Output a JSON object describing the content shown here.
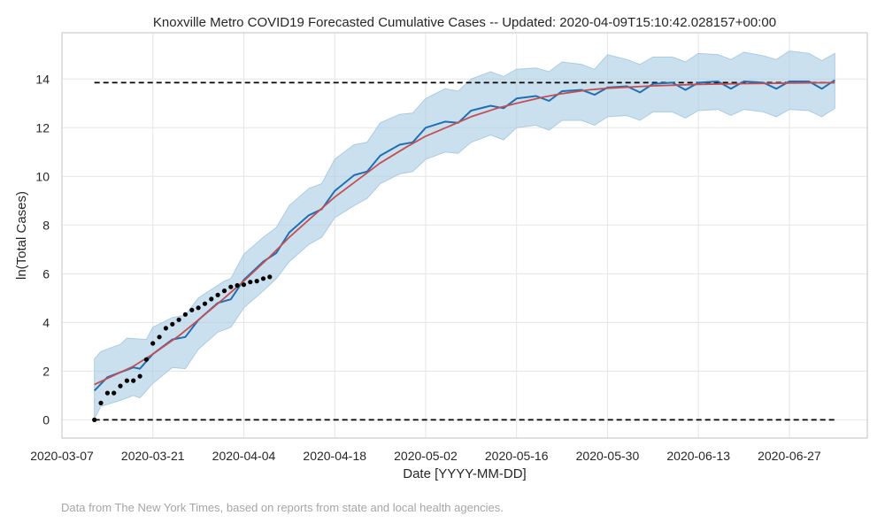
{
  "chart_data": {
    "type": "line",
    "title": "Knoxville Metro COVID19 Forecasted Cumulative Cases -- Updated: 2020-04-09T15:10:42.028157+00:00",
    "xlabel": "Date [YYYY-MM-DD]",
    "ylabel": "ln(Total Cases)",
    "x_ticks": [
      "2020-03-07",
      "2020-03-21",
      "2020-04-04",
      "2020-04-18",
      "2020-05-02",
      "2020-05-16",
      "2020-05-30",
      "2020-06-13",
      "2020-06-27"
    ],
    "y_ticks": [
      0,
      2,
      4,
      6,
      8,
      10,
      12,
      14
    ],
    "xlim": [
      "2020-03-07",
      "2020-07-09"
    ],
    "ylim": [
      -0.75,
      15.9
    ],
    "grid": true,
    "colors": {
      "observed": "#000000",
      "forecast": "#1f6fb4",
      "fit": "#c44e52",
      "band": "#a9cce3",
      "bounds": "#000000"
    },
    "series": [
      {
        "kind": "observed",
        "points": [
          [
            "2020-03-12",
            0.0
          ],
          [
            "2020-03-13",
            0.69
          ],
          [
            "2020-03-14",
            1.1
          ],
          [
            "2020-03-15",
            1.1
          ],
          [
            "2020-03-16",
            1.39
          ],
          [
            "2020-03-17",
            1.61
          ],
          [
            "2020-03-18",
            1.61
          ],
          [
            "2020-03-19",
            1.79
          ],
          [
            "2020-03-20",
            2.48
          ],
          [
            "2020-03-21",
            3.14
          ],
          [
            "2020-03-22",
            3.4
          ],
          [
            "2020-03-23",
            3.76
          ],
          [
            "2020-03-24",
            3.93
          ],
          [
            "2020-03-25",
            4.11
          ],
          [
            "2020-03-26",
            4.33
          ],
          [
            "2020-03-27",
            4.51
          ],
          [
            "2020-03-28",
            4.6
          ],
          [
            "2020-03-29",
            4.77
          ],
          [
            "2020-03-30",
            4.96
          ],
          [
            "2020-03-31",
            5.13
          ],
          [
            "2020-04-01",
            5.3
          ],
          [
            "2020-04-02",
            5.46
          ],
          [
            "2020-04-03",
            5.52
          ],
          [
            "2020-04-04",
            5.55
          ],
          [
            "2020-04-05",
            5.66
          ],
          [
            "2020-04-06",
            5.7
          ],
          [
            "2020-04-07",
            5.8
          ],
          [
            "2020-04-08",
            5.87
          ]
        ]
      },
      {
        "kind": "forecast",
        "points": [
          [
            "2020-03-12",
            1.2
          ],
          [
            "2020-03-14",
            1.75
          ],
          [
            "2020-03-16",
            1.95
          ],
          [
            "2020-03-18",
            2.15
          ],
          [
            "2020-03-19",
            2.1
          ],
          [
            "2020-03-21",
            2.7
          ],
          [
            "2020-03-24",
            3.3
          ],
          [
            "2020-03-26",
            3.4
          ],
          [
            "2020-03-28",
            4.1
          ],
          [
            "2020-03-31",
            4.8
          ],
          [
            "2020-04-02",
            4.95
          ],
          [
            "2020-04-04",
            5.75
          ],
          [
            "2020-04-07",
            6.5
          ],
          [
            "2020-04-09",
            6.85
          ],
          [
            "2020-04-11",
            7.7
          ],
          [
            "2020-04-14",
            8.4
          ],
          [
            "2020-04-16",
            8.65
          ],
          [
            "2020-04-18",
            9.4
          ],
          [
            "2020-04-21",
            10.05
          ],
          [
            "2020-04-23",
            10.2
          ],
          [
            "2020-04-25",
            10.85
          ],
          [
            "2020-04-28",
            11.3
          ],
          [
            "2020-04-30",
            11.4
          ],
          [
            "2020-05-02",
            12.0
          ],
          [
            "2020-05-05",
            12.25
          ],
          [
            "2020-05-07",
            12.2
          ],
          [
            "2020-05-09",
            12.7
          ],
          [
            "2020-05-12",
            12.9
          ],
          [
            "2020-05-14",
            12.8
          ],
          [
            "2020-05-16",
            13.2
          ],
          [
            "2020-05-19",
            13.3
          ],
          [
            "2020-05-21",
            13.1
          ],
          [
            "2020-05-23",
            13.5
          ],
          [
            "2020-05-26",
            13.55
          ],
          [
            "2020-05-28",
            13.35
          ],
          [
            "2020-05-30",
            13.65
          ],
          [
            "2020-06-02",
            13.7
          ],
          [
            "2020-06-04",
            13.45
          ],
          [
            "2020-06-06",
            13.8
          ],
          [
            "2020-06-09",
            13.85
          ],
          [
            "2020-06-11",
            13.55
          ],
          [
            "2020-06-13",
            13.85
          ],
          [
            "2020-06-16",
            13.9
          ],
          [
            "2020-06-18",
            13.6
          ],
          [
            "2020-06-20",
            13.9
          ],
          [
            "2020-06-23",
            13.85
          ],
          [
            "2020-06-25",
            13.6
          ],
          [
            "2020-06-27",
            13.9
          ],
          [
            "2020-06-30",
            13.9
          ],
          [
            "2020-07-02",
            13.6
          ],
          [
            "2020-07-04",
            13.95
          ]
        ]
      },
      {
        "kind": "fit",
        "points": [
          [
            "2020-03-12",
            1.45
          ],
          [
            "2020-03-14",
            1.7
          ],
          [
            "2020-03-16",
            1.95
          ],
          [
            "2020-03-18",
            2.2
          ],
          [
            "2020-03-21",
            2.7
          ],
          [
            "2020-03-25",
            3.45
          ],
          [
            "2020-03-28",
            4.1
          ],
          [
            "2020-04-01",
            5.0
          ],
          [
            "2020-04-04",
            5.7
          ],
          [
            "2020-04-08",
            6.7
          ],
          [
            "2020-04-11",
            7.5
          ],
          [
            "2020-04-15",
            8.45
          ],
          [
            "2020-04-18",
            9.15
          ],
          [
            "2020-04-22",
            9.95
          ],
          [
            "2020-04-25",
            10.55
          ],
          [
            "2020-04-29",
            11.2
          ],
          [
            "2020-05-02",
            11.65
          ],
          [
            "2020-05-06",
            12.1
          ],
          [
            "2020-05-09",
            12.45
          ],
          [
            "2020-05-13",
            12.8
          ],
          [
            "2020-05-16",
            13.0
          ],
          [
            "2020-05-20",
            13.25
          ],
          [
            "2020-05-23",
            13.4
          ],
          [
            "2020-05-27",
            13.55
          ],
          [
            "2020-05-30",
            13.62
          ],
          [
            "2020-06-06",
            13.72
          ],
          [
            "2020-06-13",
            13.78
          ],
          [
            "2020-06-20",
            13.81
          ],
          [
            "2020-06-27",
            13.83
          ],
          [
            "2020-07-04",
            13.85
          ]
        ]
      },
      {
        "kind": "band",
        "upper": [
          [
            "2020-03-12",
            2.5
          ],
          [
            "2020-03-13",
            2.8
          ],
          [
            "2020-03-16",
            3.1
          ],
          [
            "2020-03-17",
            3.35
          ],
          [
            "2020-03-20",
            3.3
          ],
          [
            "2020-03-21",
            3.8
          ],
          [
            "2020-03-24",
            4.2
          ],
          [
            "2020-03-26",
            4.3
          ],
          [
            "2020-03-28",
            5.0
          ],
          [
            "2020-04-01",
            5.7
          ],
          [
            "2020-04-02",
            5.8
          ],
          [
            "2020-04-04",
            6.8
          ],
          [
            "2020-04-07",
            7.5
          ],
          [
            "2020-04-09",
            7.9
          ],
          [
            "2020-04-11",
            8.8
          ],
          [
            "2020-04-14",
            9.5
          ],
          [
            "2020-04-16",
            9.7
          ],
          [
            "2020-04-18",
            10.7
          ],
          [
            "2020-04-21",
            11.3
          ],
          [
            "2020-04-23",
            11.4
          ],
          [
            "2020-04-25",
            12.2
          ],
          [
            "2020-04-28",
            12.55
          ],
          [
            "2020-04-30",
            12.6
          ],
          [
            "2020-05-02",
            13.2
          ],
          [
            "2020-05-05",
            13.6
          ],
          [
            "2020-05-07",
            13.5
          ],
          [
            "2020-05-09",
            14.0
          ],
          [
            "2020-05-12",
            14.3
          ],
          [
            "2020-05-14",
            14.1
          ],
          [
            "2020-05-16",
            14.4
          ],
          [
            "2020-05-19",
            14.45
          ],
          [
            "2020-05-21",
            14.3
          ],
          [
            "2020-05-23",
            14.7
          ],
          [
            "2020-05-26",
            14.6
          ],
          [
            "2020-05-28",
            14.4
          ],
          [
            "2020-05-30",
            15.0
          ],
          [
            "2020-06-02",
            14.8
          ],
          [
            "2020-06-04",
            14.6
          ],
          [
            "2020-06-06",
            14.9
          ],
          [
            "2020-06-09",
            14.9
          ],
          [
            "2020-06-11",
            14.7
          ],
          [
            "2020-06-13",
            15.05
          ],
          [
            "2020-06-16",
            15.0
          ],
          [
            "2020-06-18",
            14.8
          ],
          [
            "2020-06-20",
            15.1
          ],
          [
            "2020-06-23",
            14.95
          ],
          [
            "2020-06-25",
            14.8
          ],
          [
            "2020-06-27",
            15.15
          ],
          [
            "2020-06-30",
            15.05
          ],
          [
            "2020-07-02",
            14.75
          ],
          [
            "2020-07-04",
            15.05
          ]
        ],
        "lower": [
          [
            "2020-03-12",
            0.05
          ],
          [
            "2020-03-13",
            0.55
          ],
          [
            "2020-03-16",
            0.8
          ],
          [
            "2020-03-18",
            1.0
          ],
          [
            "2020-03-19",
            0.9
          ],
          [
            "2020-03-21",
            1.5
          ],
          [
            "2020-03-24",
            2.15
          ],
          [
            "2020-03-26",
            2.1
          ],
          [
            "2020-03-28",
            2.9
          ],
          [
            "2020-03-31",
            3.6
          ],
          [
            "2020-04-02",
            3.8
          ],
          [
            "2020-04-04",
            4.6
          ],
          [
            "2020-04-07",
            5.3
          ],
          [
            "2020-04-09",
            5.8
          ],
          [
            "2020-04-11",
            6.5
          ],
          [
            "2020-04-14",
            7.2
          ],
          [
            "2020-04-16",
            7.5
          ],
          [
            "2020-04-18",
            8.3
          ],
          [
            "2020-04-21",
            8.8
          ],
          [
            "2020-04-23",
            9.1
          ],
          [
            "2020-04-25",
            9.7
          ],
          [
            "2020-04-28",
            10.1
          ],
          [
            "2020-04-30",
            10.2
          ],
          [
            "2020-05-02",
            10.7
          ],
          [
            "2020-05-05",
            11.0
          ],
          [
            "2020-05-07",
            10.95
          ],
          [
            "2020-05-09",
            11.4
          ],
          [
            "2020-05-12",
            11.7
          ],
          [
            "2020-05-14",
            11.5
          ],
          [
            "2020-05-16",
            12.0
          ],
          [
            "2020-05-19",
            12.1
          ],
          [
            "2020-05-21",
            11.9
          ],
          [
            "2020-05-23",
            12.3
          ],
          [
            "2020-05-26",
            12.3
          ],
          [
            "2020-05-28",
            12.1
          ],
          [
            "2020-05-30",
            12.45
          ],
          [
            "2020-06-02",
            12.5
          ],
          [
            "2020-06-04",
            12.3
          ],
          [
            "2020-06-06",
            12.65
          ],
          [
            "2020-06-09",
            12.65
          ],
          [
            "2020-06-11",
            12.4
          ],
          [
            "2020-06-13",
            12.7
          ],
          [
            "2020-06-16",
            12.75
          ],
          [
            "2020-06-18",
            12.5
          ],
          [
            "2020-06-20",
            12.75
          ],
          [
            "2020-06-23",
            12.65
          ],
          [
            "2020-06-25",
            12.45
          ],
          [
            "2020-06-27",
            12.75
          ],
          [
            "2020-06-30",
            12.7
          ],
          [
            "2020-07-02",
            12.45
          ],
          [
            "2020-07-04",
            12.8
          ]
        ]
      },
      {
        "kind": "bound",
        "y": 13.85,
        "x_range": [
          "2020-03-12",
          "2020-07-04"
        ]
      },
      {
        "kind": "bound",
        "y": 0,
        "x_range": [
          "2020-03-12",
          "2020-07-04"
        ]
      }
    ]
  },
  "footnote": "Data from The New York Times, based on reports from state and local health agencies."
}
